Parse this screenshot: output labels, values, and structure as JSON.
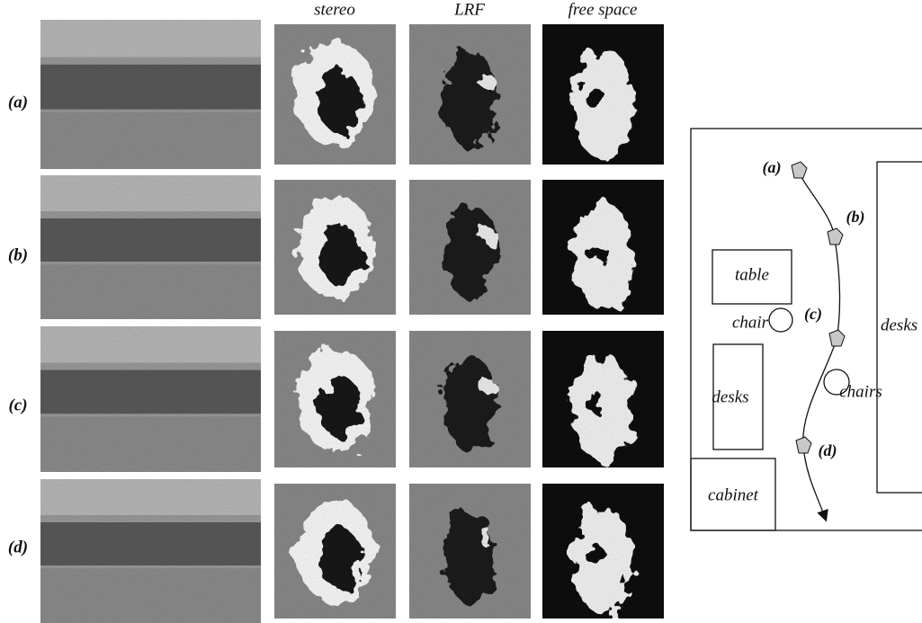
{
  "column_headers": [
    "stereo",
    "LRF",
    "free space"
  ],
  "row_labels": [
    "(a)",
    "(b)",
    "(c)",
    "(d)"
  ],
  "map": {
    "waypoints": [
      "(a)",
      "(b)",
      "(c)",
      "(d)"
    ],
    "objects": [
      "table",
      "chair",
      "desks",
      "chairs",
      "cabinet",
      "desks"
    ]
  }
}
